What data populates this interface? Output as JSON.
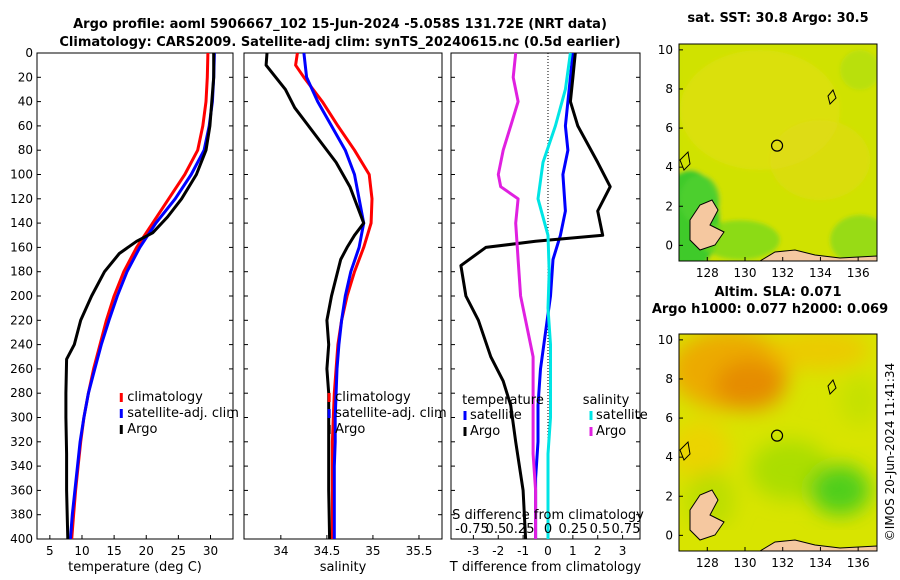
{
  "title_line1": "Argo profile: aoml 5906667_102 15-Jun-2024 -5.058S 131.72E (NRT data)",
  "title_line2": "Climatology: CARS2009. Satellite-adj clim: synTS_20240615.nc (0.5d earlier)",
  "sst_title": "sat. SST: 30.8 Argo: 30.5",
  "sla_title1": "Altim. SLA: 0.071",
  "sla_title2": "Argo h1000: 0.077 h2000: 0.069",
  "watermark": "©IMOS 20-Jun-2024 11:41:34",
  "colors": {
    "climatology": "#ff0000",
    "satellite": "#0000ff",
    "argo": "#000000",
    "sal_sat": "#00e5e5",
    "sal_argo": "#e020e0"
  },
  "chart_data": [
    {
      "type": "line",
      "name": "temperature",
      "xlabel": "temperature (deg C)",
      "xlim": [
        3,
        33.5
      ],
      "ylim": [
        400,
        0
      ],
      "xticks": [
        5,
        10,
        15,
        20,
        25,
        30
      ],
      "yticks": [
        0,
        20,
        40,
        60,
        80,
        100,
        120,
        140,
        160,
        180,
        200,
        220,
        240,
        260,
        280,
        300,
        320,
        340,
        360,
        380,
        400
      ],
      "legend": [
        "climatology",
        "satellite-adj. clim",
        "Argo"
      ],
      "series": [
        {
          "name": "climatology",
          "color": "#ff0000",
          "points": [
            [
              29.6,
              0
            ],
            [
              29.5,
              20
            ],
            [
              29.3,
              40
            ],
            [
              28.8,
              60
            ],
            [
              28.0,
              80
            ],
            [
              26.0,
              100
            ],
            [
              23.5,
              120
            ],
            [
              21.0,
              140
            ],
            [
              18.5,
              160
            ],
            [
              16.5,
              180
            ],
            [
              15.0,
              200
            ],
            [
              13.8,
              220
            ],
            [
              12.8,
              240
            ],
            [
              11.8,
              260
            ],
            [
              11.0,
              280
            ],
            [
              10.3,
              300
            ],
            [
              9.8,
              320
            ],
            [
              9.4,
              340
            ],
            [
              9.0,
              360
            ],
            [
              8.7,
              380
            ],
            [
              8.4,
              400
            ]
          ]
        },
        {
          "name": "satellite-adj. clim",
          "color": "#0000ff",
          "points": [
            [
              30.6,
              0
            ],
            [
              30.5,
              20
            ],
            [
              30.3,
              40
            ],
            [
              29.8,
              60
            ],
            [
              29.0,
              80
            ],
            [
              27.0,
              100
            ],
            [
              24.5,
              120
            ],
            [
              21.5,
              140
            ],
            [
              19.0,
              160
            ],
            [
              17.0,
              180
            ],
            [
              15.5,
              200
            ],
            [
              14.2,
              220
            ],
            [
              13.0,
              240
            ],
            [
              12.0,
              260
            ],
            [
              11.0,
              280
            ],
            [
              10.3,
              300
            ],
            [
              9.7,
              320
            ],
            [
              9.3,
              340
            ],
            [
              8.9,
              360
            ],
            [
              8.5,
              380
            ],
            [
              8.2,
              400
            ]
          ]
        },
        {
          "name": "Argo",
          "color": "#000000",
          "points": [
            [
              30.5,
              0
            ],
            [
              30.5,
              20
            ],
            [
              30.2,
              40
            ],
            [
              29.9,
              60
            ],
            [
              29.3,
              80
            ],
            [
              27.8,
              100
            ],
            [
              25.5,
              120
            ],
            [
              23.3,
              135
            ],
            [
              21.0,
              148
            ],
            [
              18.5,
              155
            ],
            [
              15.8,
              165
            ],
            [
              13.5,
              180
            ],
            [
              11.5,
              200
            ],
            [
              9.8,
              220
            ],
            [
              8.8,
              240
            ],
            [
              7.6,
              252
            ],
            [
              7.5,
              280
            ],
            [
              7.5,
              300
            ],
            [
              7.6,
              330
            ],
            [
              7.6,
              360
            ],
            [
              7.8,
              400
            ]
          ]
        }
      ]
    },
    {
      "type": "line",
      "name": "salinity",
      "xlabel": "salinity",
      "xlim": [
        33.6,
        35.75
      ],
      "ylim": [
        400,
        0
      ],
      "xticks": [
        34,
        34.5,
        35,
        35.5
      ],
      "legend": [
        "climatology",
        "satellite-adj. clim",
        "Argo"
      ],
      "series": [
        {
          "name": "climatology",
          "color": "#ff0000",
          "points": [
            [
              34.18,
              0
            ],
            [
              34.16,
              10
            ],
            [
              34.25,
              20
            ],
            [
              34.45,
              40
            ],
            [
              34.62,
              60
            ],
            [
              34.8,
              80
            ],
            [
              34.96,
              100
            ],
            [
              34.99,
              120
            ],
            [
              34.98,
              140
            ],
            [
              34.9,
              160
            ],
            [
              34.8,
              180
            ],
            [
              34.72,
              200
            ],
            [
              34.66,
              220
            ],
            [
              34.62,
              240
            ],
            [
              34.6,
              260
            ],
            [
              34.58,
              280
            ],
            [
              34.57,
              300
            ],
            [
              34.56,
              320
            ],
            [
              34.56,
              340
            ],
            [
              34.56,
              360
            ],
            [
              34.56,
              380
            ],
            [
              34.56,
              400
            ]
          ]
        },
        {
          "name": "satellite-adj. clim",
          "color": "#0000ff",
          "points": [
            [
              34.25,
              0
            ],
            [
              34.28,
              20
            ],
            [
              34.4,
              40
            ],
            [
              34.55,
              60
            ],
            [
              34.7,
              80
            ],
            [
              34.8,
              100
            ],
            [
              34.85,
              120
            ],
            [
              34.9,
              140
            ],
            [
              34.85,
              160
            ],
            [
              34.76,
              180
            ],
            [
              34.7,
              200
            ],
            [
              34.66,
              220
            ],
            [
              34.63,
              240
            ],
            [
              34.61,
              260
            ],
            [
              34.6,
              280
            ],
            [
              34.59,
              300
            ],
            [
              34.59,
              320
            ],
            [
              34.58,
              340
            ],
            [
              34.58,
              360
            ],
            [
              34.58,
              380
            ],
            [
              34.58,
              400
            ]
          ]
        },
        {
          "name": "Argo",
          "color": "#000000",
          "points": [
            [
              33.85,
              0
            ],
            [
              33.84,
              10
            ],
            [
              34.05,
              30
            ],
            [
              34.15,
              45
            ],
            [
              34.3,
              60
            ],
            [
              34.45,
              75
            ],
            [
              34.6,
              90
            ],
            [
              34.75,
              110
            ],
            [
              34.85,
              130
            ],
            [
              34.9,
              140
            ],
            [
              34.8,
              150
            ],
            [
              34.72,
              160
            ],
            [
              34.65,
              170
            ],
            [
              34.6,
              185
            ],
            [
              34.55,
              200
            ],
            [
              34.5,
              220
            ],
            [
              34.52,
              240
            ],
            [
              34.5,
              260
            ],
            [
              34.52,
              280
            ],
            [
              34.52,
              300
            ],
            [
              34.52,
              330
            ],
            [
              34.52,
              360
            ],
            [
              34.53,
              400
            ]
          ]
        }
      ]
    },
    {
      "type": "line",
      "name": "difference",
      "xlabel": "T difference from climatology",
      "xlim": [
        -3.9,
        3.7
      ],
      "ylim": [
        400,
        0
      ],
      "xticks": [
        -3,
        -2,
        -1,
        0,
        1,
        2,
        3
      ],
      "top_label": "S difference from climatology",
      "top_ticks": [
        "-0.75",
        "0.5",
        "0.25",
        "0",
        "0.25",
        "0.5",
        "0.75"
      ],
      "legend_temperature_title": "temperature",
      "legend_salinity_title": "salinity",
      "legend_temperature": [
        "satellite",
        "Argo"
      ],
      "legend_salinity": [
        "satellite",
        "Argo"
      ],
      "series": [
        {
          "name": "temperature satellite",
          "color": "#0000ff",
          "points": [
            [
              1.0,
              0
            ],
            [
              0.9,
              20
            ],
            [
              0.8,
              40
            ],
            [
              0.7,
              60
            ],
            [
              0.8,
              80
            ],
            [
              0.6,
              100
            ],
            [
              0.7,
              130
            ],
            [
              0.5,
              150
            ],
            [
              0.2,
              170
            ],
            [
              0.1,
              200
            ],
            [
              -0.1,
              230
            ],
            [
              -0.3,
              260
            ],
            [
              -0.4,
              290
            ],
            [
              -0.4,
              320
            ],
            [
              -0.5,
              350
            ],
            [
              -0.5,
              380
            ],
            [
              -0.5,
              400
            ]
          ]
        },
        {
          "name": "temperature Argo",
          "color": "#000000",
          "points": [
            [
              1.1,
              0
            ],
            [
              1.0,
              20
            ],
            [
              0.9,
              40
            ],
            [
              1.2,
              60
            ],
            [
              2.0,
              90
            ],
            [
              2.5,
              110
            ],
            [
              2.0,
              130
            ],
            [
              2.2,
              150
            ],
            [
              -0.5,
              155
            ],
            [
              -2.5,
              160
            ],
            [
              -3.5,
              175
            ],
            [
              -3.3,
              200
            ],
            [
              -2.8,
              220
            ],
            [
              -2.3,
              250
            ],
            [
              -1.8,
              270
            ],
            [
              -1.5,
              290
            ],
            [
              -1.3,
              320
            ],
            [
              -1.0,
              360
            ],
            [
              -0.9,
              400
            ]
          ]
        },
        {
          "name": "salinity satellite",
          "color": "#00e5e5",
          "points": [
            [
              0.9,
              0
            ],
            [
              0.7,
              30
            ],
            [
              0.3,
              60
            ],
            [
              -0.2,
              90
            ],
            [
              -0.4,
              120
            ],
            [
              0.0,
              150
            ],
            [
              0.05,
              180
            ],
            [
              0.0,
              210
            ],
            [
              0.1,
              240
            ],
            [
              0.1,
              260
            ],
            [
              0.1,
              300
            ],
            [
              0.0,
              330
            ],
            [
              0.0,
              360
            ],
            [
              0.0,
              400
            ]
          ]
        },
        {
          "name": "salinity Argo",
          "color": "#e020e0",
          "points": [
            [
              -1.3,
              0
            ],
            [
              -1.4,
              20
            ],
            [
              -1.2,
              40
            ],
            [
              -1.5,
              60
            ],
            [
              -1.8,
              80
            ],
            [
              -2.0,
              100
            ],
            [
              -1.9,
              110
            ],
            [
              -1.2,
              120
            ],
            [
              -1.3,
              140
            ],
            [
              -1.2,
              170
            ],
            [
              -1.1,
              200
            ],
            [
              -0.8,
              230
            ],
            [
              -0.6,
              250
            ],
            [
              -0.6,
              270
            ],
            [
              -0.6,
              300
            ],
            [
              -0.6,
              330
            ],
            [
              -0.5,
              360
            ],
            [
              -0.5,
              400
            ]
          ]
        }
      ]
    },
    {
      "type": "heatmap",
      "name": "sst_map",
      "xlim": [
        126.5,
        137
      ],
      "ylim": [
        -0.8,
        10.3
      ],
      "xticks": [
        128,
        130,
        132,
        134,
        136
      ],
      "yticks": [
        0,
        2,
        4,
        6,
        8,
        10
      ],
      "marker": [
        131.7,
        5.1
      ]
    },
    {
      "type": "heatmap",
      "name": "sla_map",
      "xlim": [
        126.5,
        137
      ],
      "ylim": [
        -0.8,
        10.3
      ],
      "xticks": [
        128,
        130,
        132,
        134,
        136
      ],
      "yticks": [
        0,
        2,
        4,
        6,
        8,
        10
      ],
      "marker": [
        131.7,
        5.1
      ]
    }
  ]
}
